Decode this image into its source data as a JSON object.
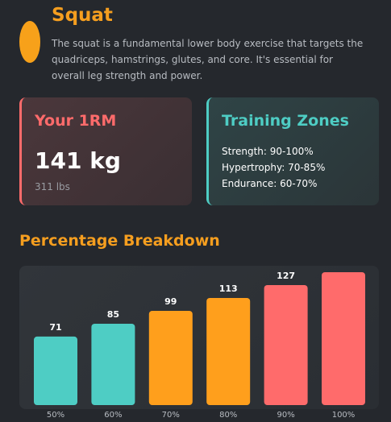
{
  "exercise": {
    "title": "Squat",
    "description": "The squat is a fundamental lower body exercise that targets the quadriceps, hamstrings, glutes, and core. It's essential for overall leg strength and power."
  },
  "one_rm_card": {
    "title": "Your 1RM",
    "value": "141 kg",
    "secondary": "311 lbs"
  },
  "zones_card": {
    "title": "Training Zones",
    "zones": [
      "Strength: 90-100%",
      "Hypertrophy: 70-85%",
      "Endurance: 60-70%"
    ]
  },
  "breakdown": {
    "title": "Percentage Breakdown"
  },
  "colors": {
    "accent_orange": "#f59e1f",
    "teal": "#4ecdc4",
    "coral": "#ff6b6b",
    "bar_orange": "#ff9f1c"
  },
  "chart_data": {
    "type": "bar",
    "categories": [
      "50%",
      "60%",
      "70%",
      "80%",
      "90%",
      "100%"
    ],
    "values": [
      71,
      85,
      99,
      113,
      127,
      141
    ],
    "bar_colors": [
      "#4ecdc4",
      "#4ecdc4",
      "#ff9f1c",
      "#ff9f1c",
      "#ff6b6b",
      "#ff6b6b"
    ],
    "title": "Percentage Breakdown",
    "xlabel": "",
    "ylabel": "",
    "ylim": [
      0,
      141
    ]
  }
}
